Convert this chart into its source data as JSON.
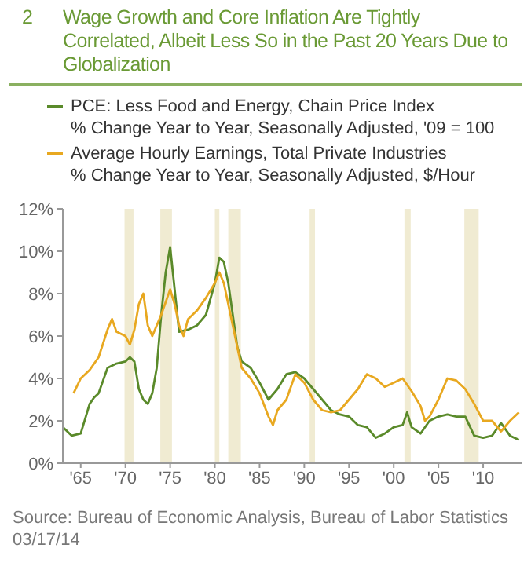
{
  "chart_data": {
    "type": "line",
    "title": "Wage Growth and Core Inflation Are Tightly Correlated, Albeit Less So in the Past 20 Years Due to Globalization",
    "annotations": [
      "2",
      "% Change Year to Year, Seasonally Adjusted, '09 = 100",
      "% Change Year to Year, Seasonally Adjusted, $/Hour",
      "Source: Bureau of Economic Analysis, Bureau of Labor Statistics   03/17/14"
    ],
    "xlim": [
      1963,
      2014.3
    ],
    "xticks": [
      {
        "value": 1965,
        "label": "'65"
      },
      {
        "value": 1970,
        "label": "'70"
      },
      {
        "value": 1975,
        "label": "'75"
      },
      {
        "value": 1980,
        "label": "'80"
      },
      {
        "value": 1985,
        "label": "'85"
      },
      {
        "value": 1990,
        "label": "'90"
      },
      {
        "value": 1995,
        "label": "'95"
      },
      {
        "value": 2000,
        "label": "'00"
      },
      {
        "value": 2005,
        "label": "'05"
      },
      {
        "value": 2010,
        "label": "'10"
      }
    ],
    "ylim": [
      0,
      12
    ],
    "yticks": [
      {
        "value": 0,
        "label": "0%"
      },
      {
        "value": 2,
        "label": "2%"
      },
      {
        "value": 4,
        "label": "4%"
      },
      {
        "value": 6,
        "label": "6%"
      },
      {
        "value": 8,
        "label": "8%"
      },
      {
        "value": 10,
        "label": "10%"
      },
      {
        "value": 12,
        "label": "12%"
      }
    ],
    "grid": false,
    "legend": "top",
    "marker": "none",
    "line_style": "solid",
    "bands": [
      {
        "axis": "x",
        "from": 1969.9,
        "to": 1970.9,
        "color": "#f0ebd2"
      },
      {
        "axis": "x",
        "from": 1973.9,
        "to": 1975.2,
        "color": "#f0ebd2"
      },
      {
        "axis": "x",
        "from": 1980,
        "to": 1980.5,
        "color": "#f0ebd2"
      },
      {
        "axis": "x",
        "from": 1981.5,
        "to": 1982.9,
        "color": "#f0ebd2"
      },
      {
        "axis": "x",
        "from": 1990.6,
        "to": 1991.2,
        "color": "#f0ebd2"
      },
      {
        "axis": "x",
        "from": 2001.2,
        "to": 2001.9,
        "color": "#f0ebd2"
      },
      {
        "axis": "x",
        "from": 2007.9,
        "to": 2009.5,
        "color": "#f0ebd2"
      }
    ],
    "series": [
      {
        "name": "PCE: Less Food and Energy, Chain Price Index",
        "color": "#5a8a2a",
        "x": [
          1963,
          1964,
          1965,
          1966,
          1966.5,
          1967,
          1968,
          1969,
          1970,
          1970.5,
          1971,
          1971.5,
          1972,
          1972.5,
          1973,
          1973.5,
          1974,
          1974.5,
          1975,
          1975.3,
          1975.8,
          1976,
          1977,
          1978,
          1979,
          1980,
          1980.5,
          1981,
          1981.5,
          1982,
          1982.5,
          1983,
          1984,
          1985,
          1986,
          1987,
          1988,
          1989,
          1990,
          1991,
          1992,
          1993,
          1994,
          1995,
          1996,
          1997,
          1998,
          1999,
          2000,
          2001,
          2001.5,
          2002,
          2003,
          2004,
          2005,
          2006,
          2007,
          2008,
          2009,
          2010,
          2011,
          2012,
          2013,
          2014
        ],
        "values": [
          1.7,
          1.3,
          1.4,
          2.8,
          3.1,
          3.3,
          4.5,
          4.7,
          4.8,
          5.0,
          4.8,
          3.5,
          3.0,
          2.8,
          3.3,
          4.5,
          7,
          9,
          10.2,
          9,
          7,
          6.2,
          6.3,
          6.5,
          7,
          8.5,
          9.7,
          9.5,
          8.5,
          7,
          5.5,
          4.8,
          4.5,
          3.8,
          3.0,
          3.5,
          4.2,
          4.3,
          4.0,
          3.5,
          3.0,
          2.5,
          2.3,
          2.2,
          1.8,
          1.7,
          1.2,
          1.4,
          1.7,
          1.8,
          2.4,
          1.7,
          1.4,
          2.0,
          2.2,
          2.3,
          2.2,
          2.2,
          1.3,
          1.2,
          1.3,
          1.9,
          1.3,
          1.1
        ]
      },
      {
        "name": "Average Hourly Earnings, Total Private Industries",
        "color": "#e8a820",
        "x": [
          1964.2,
          1965,
          1966,
          1967,
          1968,
          1968.5,
          1969,
          1970,
          1970.5,
          1971,
          1971.5,
          1972,
          1972.5,
          1973,
          1974,
          1975,
          1975.5,
          1976,
          1976.5,
          1977,
          1978,
          1979,
          1980,
          1980.5,
          1981,
          1982,
          1983,
          1984,
          1985,
          1986,
          1986.5,
          1987,
          1988,
          1989,
          1990,
          1991,
          1992,
          1993,
          1994,
          1995,
          1996,
          1997,
          1998,
          1999,
          2000,
          2001,
          2002,
          2003,
          2003.5,
          2004,
          2005,
          2006,
          2007,
          2008,
          2009,
          2010,
          2011,
          2012,
          2013,
          2014
        ],
        "values": [
          3.3,
          4.0,
          4.4,
          5.0,
          6.3,
          6.8,
          6.2,
          6.0,
          5.6,
          6.3,
          7.5,
          8.0,
          6.5,
          6.0,
          7.0,
          8.2,
          7.5,
          6.5,
          6.0,
          6.8,
          7.2,
          7.8,
          8.5,
          9.0,
          8.5,
          6.5,
          4.5,
          4.0,
          3.3,
          2.2,
          1.8,
          2.5,
          3.0,
          4.2,
          3.8,
          3.0,
          2.5,
          2.4,
          2.5,
          3.0,
          3.5,
          4.2,
          4.0,
          3.6,
          3.8,
          4.0,
          3.4,
          2.7,
          2.0,
          2.2,
          3.0,
          4.0,
          3.9,
          3.5,
          2.8,
          2.0,
          2.0,
          1.5,
          2.0,
          2.4
        ]
      }
    ]
  }
}
